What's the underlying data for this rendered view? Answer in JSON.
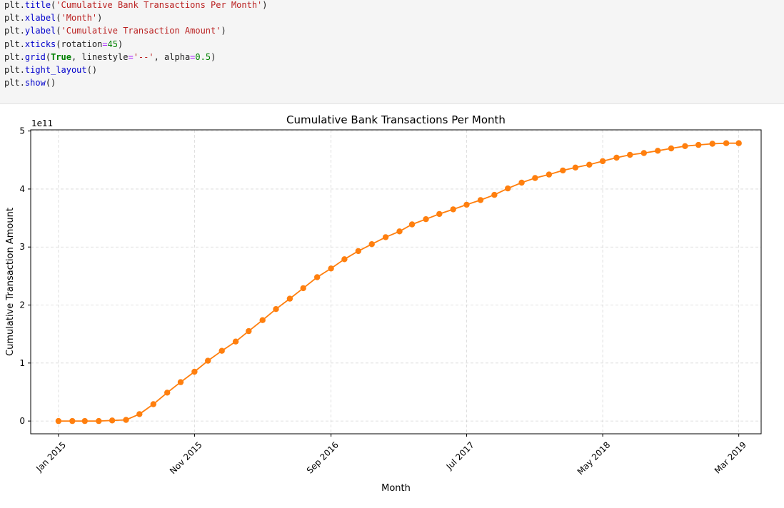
{
  "code": {
    "lines": [
      [
        {
          "t": "plt",
          "c": "obj"
        },
        {
          "t": ".",
          "c": "p"
        },
        {
          "t": "title",
          "c": "fn"
        },
        {
          "t": "(",
          "c": "p"
        },
        {
          "t": "'Cumulative Bank Transactions Per Month'",
          "c": "str"
        },
        {
          "t": ")",
          "c": "p"
        }
      ],
      [
        {
          "t": "plt",
          "c": "obj"
        },
        {
          "t": ".",
          "c": "p"
        },
        {
          "t": "xlabel",
          "c": "fn"
        },
        {
          "t": "(",
          "c": "p"
        },
        {
          "t": "'Month'",
          "c": "str"
        },
        {
          "t": ")",
          "c": "p"
        }
      ],
      [
        {
          "t": "plt",
          "c": "obj"
        },
        {
          "t": ".",
          "c": "p"
        },
        {
          "t": "ylabel",
          "c": "fn"
        },
        {
          "t": "(",
          "c": "p"
        },
        {
          "t": "'Cumulative Transaction Amount'",
          "c": "str"
        },
        {
          "t": ")",
          "c": "p"
        }
      ],
      [
        {
          "t": "plt",
          "c": "obj"
        },
        {
          "t": ".",
          "c": "p"
        },
        {
          "t": "xticks",
          "c": "fn"
        },
        {
          "t": "(rotation",
          "c": "p"
        },
        {
          "t": "=",
          "c": "op"
        },
        {
          "t": "45",
          "c": "num"
        },
        {
          "t": ")",
          "c": "p"
        }
      ],
      [
        {
          "t": "plt",
          "c": "obj"
        },
        {
          "t": ".",
          "c": "p"
        },
        {
          "t": "grid",
          "c": "fn"
        },
        {
          "t": "(",
          "c": "p"
        },
        {
          "t": "True",
          "c": "kw"
        },
        {
          "t": ", linestyle",
          "c": "p"
        },
        {
          "t": "=",
          "c": "op"
        },
        {
          "t": "'--'",
          "c": "str"
        },
        {
          "t": ", alpha",
          "c": "p"
        },
        {
          "t": "=",
          "c": "op"
        },
        {
          "t": "0.5",
          "c": "num"
        },
        {
          "t": ")",
          "c": "p"
        }
      ],
      [
        {
          "t": "plt",
          "c": "obj"
        },
        {
          "t": ".",
          "c": "p"
        },
        {
          "t": "tight_layout",
          "c": "fn"
        },
        {
          "t": "()",
          "c": "p"
        }
      ],
      [
        {
          "t": "plt",
          "c": "obj"
        },
        {
          "t": ".",
          "c": "p"
        },
        {
          "t": "show",
          "c": "fn"
        },
        {
          "t": "()",
          "c": "p"
        }
      ]
    ]
  },
  "chart_data": {
    "type": "line",
    "title": "Cumulative Bank Transactions Per Month",
    "xlabel": "Month",
    "ylabel": "Cumulative Transaction Amount",
    "y_offset_text": "1e11",
    "y_unit_multiplier": 100000000000,
    "ylim": [
      -0.22,
      5.02
    ],
    "xlim": [
      "2014-10-31",
      "2019-04-20"
    ],
    "yticks": [
      0,
      1,
      2,
      3,
      4,
      5
    ],
    "xticks": [
      {
        "date": "2015-01-01",
        "label": "Jan 2015"
      },
      {
        "date": "2015-11-01",
        "label": "Nov 2015"
      },
      {
        "date": "2016-09-01",
        "label": "Sep 2016"
      },
      {
        "date": "2017-07-01",
        "label": "Jul 2017"
      },
      {
        "date": "2018-05-01",
        "label": "May 2018"
      },
      {
        "date": "2019-03-01",
        "label": "Mar 2019"
      }
    ],
    "grid": true,
    "grid_style": "dashed",
    "series": [
      {
        "color": "#ff7f0e",
        "marker": "o",
        "x": [
          "2015-01",
          "2015-02",
          "2015-03",
          "2015-04",
          "2015-05",
          "2015-06",
          "2015-07",
          "2015-08",
          "2015-09",
          "2015-10",
          "2015-11",
          "2015-12",
          "2016-01",
          "2016-02",
          "2016-03",
          "2016-04",
          "2016-05",
          "2016-06",
          "2016-07",
          "2016-08",
          "2016-09",
          "2016-10",
          "2016-11",
          "2016-12",
          "2017-01",
          "2017-02",
          "2017-03",
          "2017-04",
          "2017-05",
          "2017-06",
          "2017-07",
          "2017-08",
          "2017-09",
          "2017-10",
          "2017-11",
          "2017-12",
          "2018-01",
          "2018-02",
          "2018-03",
          "2018-04",
          "2018-05",
          "2018-06",
          "2018-07",
          "2018-08",
          "2018-09",
          "2018-10",
          "2018-11",
          "2018-12",
          "2019-01",
          "2019-02",
          "2019-03"
        ],
        "values": [
          0.0,
          0.0,
          0.0,
          0.0,
          0.01,
          0.02,
          0.12,
          0.29,
          0.49,
          0.67,
          0.85,
          1.04,
          1.21,
          1.37,
          1.55,
          1.74,
          1.93,
          2.11,
          2.29,
          2.48,
          2.63,
          2.79,
          2.93,
          3.05,
          3.17,
          3.27,
          3.39,
          3.48,
          3.57,
          3.65,
          3.73,
          3.81,
          3.9,
          4.01,
          4.11,
          4.19,
          4.25,
          4.32,
          4.37,
          4.42,
          4.48,
          4.54,
          4.59,
          4.62,
          4.66,
          4.7,
          4.74,
          4.76,
          4.78,
          4.79,
          4.79
        ]
      }
    ]
  }
}
